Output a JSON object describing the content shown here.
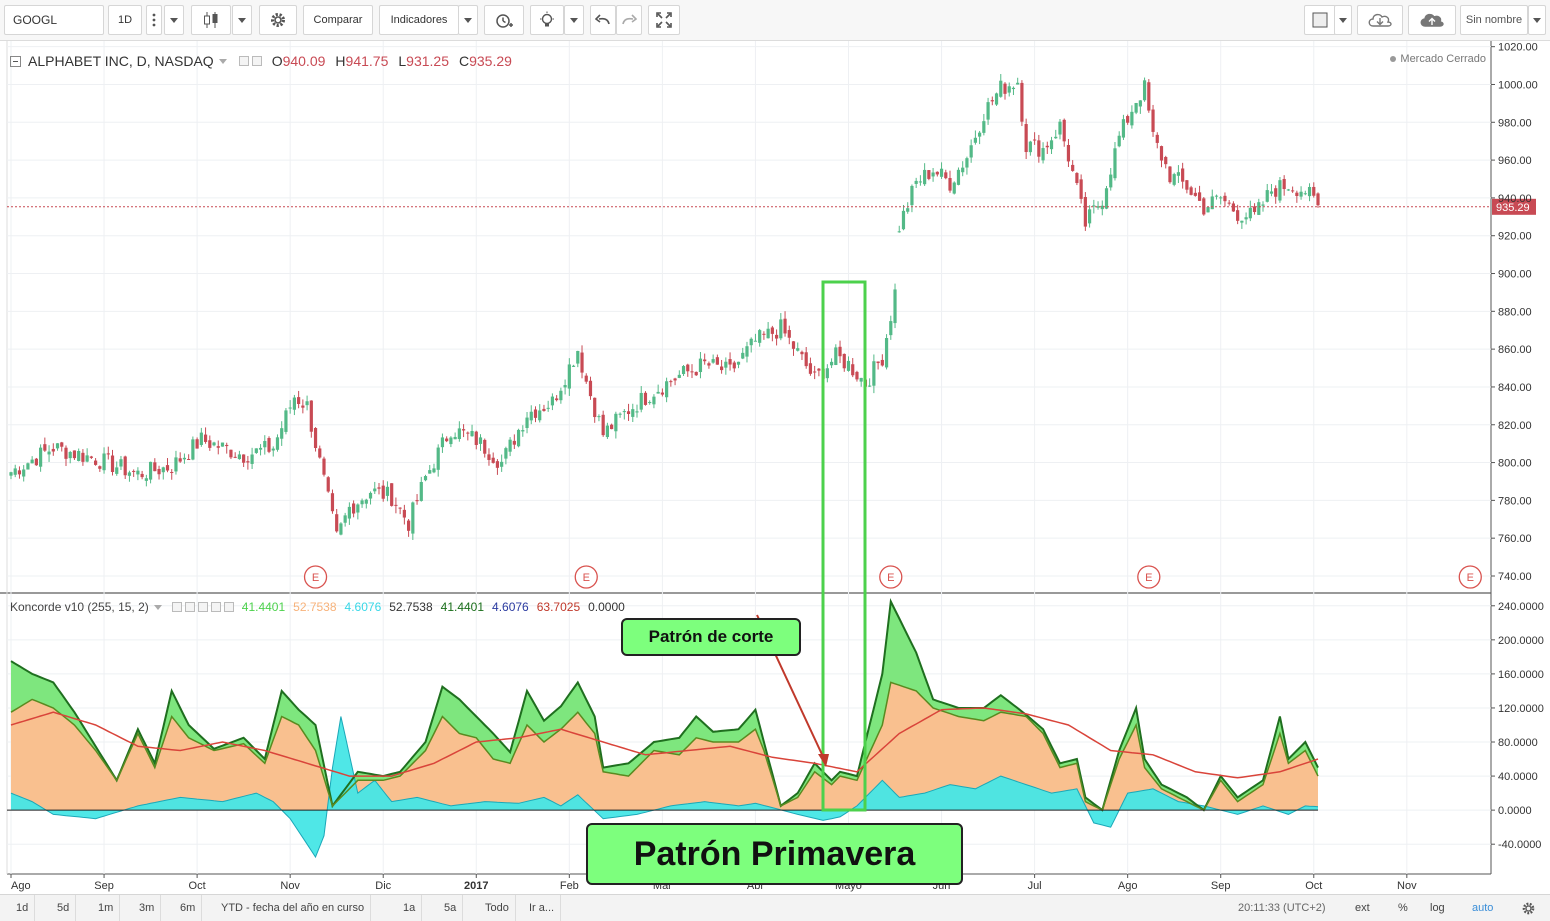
{
  "toolbar": {
    "symbol": "GOOGL",
    "interval": "1D",
    "compare_label": "Comparar",
    "indicators_label": "Indicadores",
    "layout_name": "Sin nombre"
  },
  "price_pane": {
    "title": "ALPHABET INC, D, NASDAQ",
    "o_label": "O",
    "o_value": "940.09",
    "h_label": "H",
    "h_value": "941.75",
    "l_label": "L",
    "l_value": "931.25",
    "c_label": "C",
    "c_value": "935.29",
    "last_price_tag": "935.29",
    "market_status": "Mercado Cerrado",
    "earnings_marker": "E"
  },
  "indicator_pane": {
    "title": "Koncorde v10 (255, 15, 2)",
    "values": [
      {
        "text": "41.4401",
        "color": "#4cd14c"
      },
      {
        "text": "52.7538",
        "color": "#f7b27a"
      },
      {
        "text": "4.6076",
        "color": "#38d7e7"
      },
      {
        "text": "52.7538",
        "color": "#333333"
      },
      {
        "text": "41.4401",
        "color": "#1a6e1a"
      },
      {
        "text": "4.6076",
        "color": "#2a3aa0"
      },
      {
        "text": "63.7025",
        "color": "#c0392b"
      },
      {
        "text": "0.0000",
        "color": "#333333"
      }
    ]
  },
  "chart_data": {
    "type": "candlestick",
    "price_axis": [
      "1020.00",
      "1000.00",
      "980.00",
      "960.00",
      "940.00",
      "920.00",
      "900.00",
      "880.00",
      "860.00",
      "840.00",
      "820.00",
      "800.00",
      "780.00",
      "760.00",
      "740.00"
    ],
    "price_ylim": [
      731,
      1023
    ],
    "indicator_axis": [
      "240.0000",
      "200.0000",
      "160.0000",
      "120.0000",
      "80.0000",
      "40.0000",
      "0.0000",
      "-40.0000"
    ],
    "indicator_ylim": [
      -75,
      255
    ],
    "x_labels": [
      "Ago",
      "Sep",
      "Oct",
      "Nov",
      "Dic",
      "2017",
      "Feb",
      "Mar",
      "Abr",
      "Mayo",
      "Jun",
      "Jul",
      "Ago",
      "Sep",
      "Oct",
      "Nov"
    ],
    "price_anchors": [
      [
        0,
        795
      ],
      [
        10,
        808
      ],
      [
        20,
        802
      ],
      [
        30,
        794
      ],
      [
        38,
        798
      ],
      [
        45,
        812
      ],
      [
        55,
        804
      ],
      [
        62,
        808
      ],
      [
        67,
        835
      ],
      [
        70,
        830
      ],
      [
        74,
        790
      ],
      [
        77,
        760
      ],
      [
        80,
        776
      ],
      [
        85,
        785
      ],
      [
        90,
        782
      ],
      [
        94,
        768
      ],
      [
        98,
        792
      ],
      [
        104,
        818
      ],
      [
        110,
        812
      ],
      [
        116,
        800
      ],
      [
        122,
        826
      ],
      [
        128,
        832
      ],
      [
        134,
        860
      ],
      [
        136,
        843
      ],
      [
        140,
        815
      ],
      [
        146,
        828
      ],
      [
        152,
        838
      ],
      [
        158,
        846
      ],
      [
        164,
        852
      ],
      [
        170,
        848
      ],
      [
        176,
        864
      ],
      [
        182,
        871
      ],
      [
        186,
        858
      ],
      [
        190,
        844
      ],
      [
        195,
        856
      ],
      [
        198,
        852
      ],
      [
        202,
        842
      ],
      [
        206,
        856
      ],
      [
        208,
        878
      ],
      [
        209,
        890
      ],
      [
        210,
        925
      ],
      [
        214,
        948
      ],
      [
        218,
        955
      ],
      [
        222,
        948
      ],
      [
        226,
        962
      ],
      [
        230,
        985
      ],
      [
        234,
        998
      ],
      [
        238,
        1002
      ],
      [
        240,
        968
      ],
      [
        244,
        966
      ],
      [
        248,
        978
      ],
      [
        250,
        962
      ],
      [
        254,
        926
      ],
      [
        258,
        940
      ],
      [
        262,
        972
      ],
      [
        266,
        992
      ],
      [
        268,
        998
      ],
      [
        270,
        972
      ],
      [
        274,
        952
      ],
      [
        278,
        946
      ],
      [
        282,
        935
      ],
      [
        286,
        940
      ],
      [
        290,
        932
      ],
      [
        294,
        930
      ],
      [
        298,
        944
      ],
      [
        302,
        947
      ],
      [
        306,
        944
      ],
      [
        309,
        935
      ]
    ],
    "earnings_x": [
      72,
      136,
      208,
      269,
      345
    ],
    "koncorde": {
      "green_anchors": [
        [
          0,
          175
        ],
        [
          5,
          160
        ],
        [
          10,
          150
        ],
        [
          15,
          115
        ],
        [
          20,
          75
        ],
        [
          25,
          35
        ],
        [
          30,
          95
        ],
        [
          34,
          55
        ],
        [
          38,
          140
        ],
        [
          42,
          100
        ],
        [
          48,
          72
        ],
        [
          55,
          85
        ],
        [
          60,
          60
        ],
        [
          64,
          140
        ],
        [
          68,
          118
        ],
        [
          72,
          100
        ],
        [
          76,
          5
        ],
        [
          82,
          45
        ],
        [
          88,
          40
        ],
        [
          92,
          45
        ],
        [
          98,
          80
        ],
        [
          102,
          145
        ],
        [
          106,
          130
        ],
        [
          110,
          110
        ],
        [
          114,
          90
        ],
        [
          118,
          68
        ],
        [
          122,
          140
        ],
        [
          126,
          105
        ],
        [
          130,
          122
        ],
        [
          134,
          150
        ],
        [
          138,
          110
        ],
        [
          140,
          50
        ],
        [
          146,
          55
        ],
        [
          152,
          80
        ],
        [
          158,
          85
        ],
        [
          162,
          110
        ],
        [
          166,
          92
        ],
        [
          172,
          95
        ],
        [
          176,
          118
        ],
        [
          178,
          80
        ],
        [
          182,
          5
        ],
        [
          186,
          20
        ],
        [
          190,
          55
        ],
        [
          194,
          35
        ],
        [
          196,
          45
        ],
        [
          200,
          40
        ],
        [
          206,
          160
        ],
        [
          208,
          245
        ],
        [
          214,
          185
        ],
        [
          218,
          130
        ],
        [
          224,
          120
        ],
        [
          230,
          120
        ],
        [
          234,
          135
        ],
        [
          240,
          112
        ],
        [
          244,
          95
        ],
        [
          248,
          55
        ],
        [
          252,
          60
        ],
        [
          254,
          15
        ],
        [
          258,
          0
        ],
        [
          262,
          70
        ],
        [
          266,
          120
        ],
        [
          268,
          60
        ],
        [
          272,
          30
        ],
        [
          278,
          15
        ],
        [
          282,
          0
        ],
        [
          286,
          40
        ],
        [
          290,
          15
        ],
        [
          296,
          35
        ],
        [
          300,
          110
        ],
        [
          302,
          60
        ],
        [
          306,
          80
        ],
        [
          309,
          50
        ]
      ],
      "orange_anchors": [
        [
          0,
          115
        ],
        [
          5,
          130
        ],
        [
          10,
          120
        ],
        [
          15,
          100
        ],
        [
          20,
          70
        ],
        [
          25,
          35
        ],
        [
          30,
          90
        ],
        [
          34,
          50
        ],
        [
          38,
          110
        ],
        [
          42,
          85
        ],
        [
          48,
          70
        ],
        [
          55,
          78
        ],
        [
          60,
          55
        ],
        [
          64,
          110
        ],
        [
          68,
          100
        ],
        [
          72,
          70
        ],
        [
          76,
          5
        ],
        [
          82,
          35
        ],
        [
          88,
          35
        ],
        [
          92,
          40
        ],
        [
          98,
          70
        ],
        [
          102,
          110
        ],
        [
          106,
          90
        ],
        [
          110,
          85
        ],
        [
          114,
          60
        ],
        [
          118,
          55
        ],
        [
          122,
          100
        ],
        [
          126,
          80
        ],
        [
          130,
          95
        ],
        [
          134,
          115
        ],
        [
          138,
          90
        ],
        [
          140,
          45
        ],
        [
          146,
          40
        ],
        [
          152,
          70
        ],
        [
          158,
          65
        ],
        [
          162,
          85
        ],
        [
          166,
          80
        ],
        [
          172,
          80
        ],
        [
          176,
          95
        ],
        [
          178,
          70
        ],
        [
          182,
          5
        ],
        [
          186,
          15
        ],
        [
          190,
          45
        ],
        [
          194,
          30
        ],
        [
          196,
          40
        ],
        [
          200,
          35
        ],
        [
          206,
          100
        ],
        [
          208,
          150
        ],
        [
          214,
          140
        ],
        [
          218,
          120
        ],
        [
          224,
          110
        ],
        [
          230,
          105
        ],
        [
          234,
          115
        ],
        [
          240,
          110
        ],
        [
          244,
          90
        ],
        [
          248,
          50
        ],
        [
          252,
          55
        ],
        [
          254,
          10
        ],
        [
          258,
          0
        ],
        [
          262,
          60
        ],
        [
          266,
          100
        ],
        [
          268,
          50
        ],
        [
          272,
          25
        ],
        [
          278,
          10
        ],
        [
          282,
          0
        ],
        [
          286,
          35
        ],
        [
          290,
          10
        ],
        [
          296,
          30
        ],
        [
          300,
          90
        ],
        [
          302,
          55
        ],
        [
          306,
          70
        ],
        [
          309,
          40
        ]
      ],
      "cyan_anchors": [
        [
          0,
          20
        ],
        [
          5,
          10
        ],
        [
          10,
          -5
        ],
        [
          20,
          -10
        ],
        [
          30,
          5
        ],
        [
          40,
          15
        ],
        [
          50,
          10
        ],
        [
          58,
          20
        ],
        [
          62,
          10
        ],
        [
          66,
          -10
        ],
        [
          70,
          -40
        ],
        [
          72,
          -55
        ],
        [
          74,
          -30
        ],
        [
          76,
          50
        ],
        [
          78,
          110
        ],
        [
          82,
          20
        ],
        [
          86,
          35
        ],
        [
          90,
          10
        ],
        [
          96,
          15
        ],
        [
          104,
          5
        ],
        [
          112,
          10
        ],
        [
          120,
          8
        ],
        [
          126,
          15
        ],
        [
          130,
          5
        ],
        [
          134,
          18
        ],
        [
          140,
          -10
        ],
        [
          148,
          -5
        ],
        [
          156,
          5
        ],
        [
          164,
          10
        ],
        [
          172,
          5
        ],
        [
          176,
          8
        ],
        [
          180,
          3
        ],
        [
          186,
          -5
        ],
        [
          192,
          -12
        ],
        [
          196,
          -8
        ],
        [
          200,
          5
        ],
        [
          206,
          35
        ],
        [
          210,
          15
        ],
        [
          216,
          20
        ],
        [
          222,
          30
        ],
        [
          228,
          25
        ],
        [
          234,
          40
        ],
        [
          240,
          30
        ],
        [
          246,
          20
        ],
        [
          252,
          25
        ],
        [
          256,
          -15
        ],
        [
          260,
          -20
        ],
        [
          264,
          20
        ],
        [
          270,
          25
        ],
        [
          276,
          10
        ],
        [
          282,
          5
        ],
        [
          290,
          -5
        ],
        [
          296,
          5
        ],
        [
          302,
          -5
        ],
        [
          306,
          5
        ],
        [
          309,
          4
        ]
      ],
      "red_anchors": [
        [
          0,
          100
        ],
        [
          10,
          115
        ],
        [
          20,
          100
        ],
        [
          30,
          75
        ],
        [
          40,
          70
        ],
        [
          50,
          80
        ],
        [
          60,
          70
        ],
        [
          70,
          55
        ],
        [
          80,
          40
        ],
        [
          90,
          40
        ],
        [
          100,
          55
        ],
        [
          110,
          80
        ],
        [
          120,
          85
        ],
        [
          130,
          95
        ],
        [
          140,
          80
        ],
        [
          150,
          65
        ],
        [
          160,
          70
        ],
        [
          170,
          75
        ],
        [
          180,
          62
        ],
        [
          190,
          55
        ],
        [
          200,
          45
        ],
        [
          210,
          90
        ],
        [
          220,
          118
        ],
        [
          230,
          120
        ],
        [
          240,
          113
        ],
        [
          250,
          100
        ],
        [
          260,
          70
        ],
        [
          270,
          65
        ],
        [
          280,
          45
        ],
        [
          290,
          38
        ],
        [
          300,
          45
        ],
        [
          309,
          60
        ]
      ]
    }
  },
  "annotations": {
    "corte_label": "Patrón de corte",
    "primavera_label": "Patrón Primavera"
  },
  "bottom_bar": {
    "ranges": [
      "1d",
      "5d",
      "1m",
      "3m",
      "6m",
      "YTD - fecha del año en curso",
      "1a",
      "5a",
      "Todo",
      "Ir a..."
    ],
    "time": "20:11:33 (UTC+2)",
    "ext": "ext",
    "percent": "%",
    "log": "log",
    "auto": "auto"
  },
  "colors": {
    "up": "#53b987",
    "down": "#c84a54",
    "green_fill": "#7ee67e",
    "orange_fill": "#f9c08f",
    "cyan_fill": "#46e6e6",
    "highlight": "#4cd14c"
  }
}
